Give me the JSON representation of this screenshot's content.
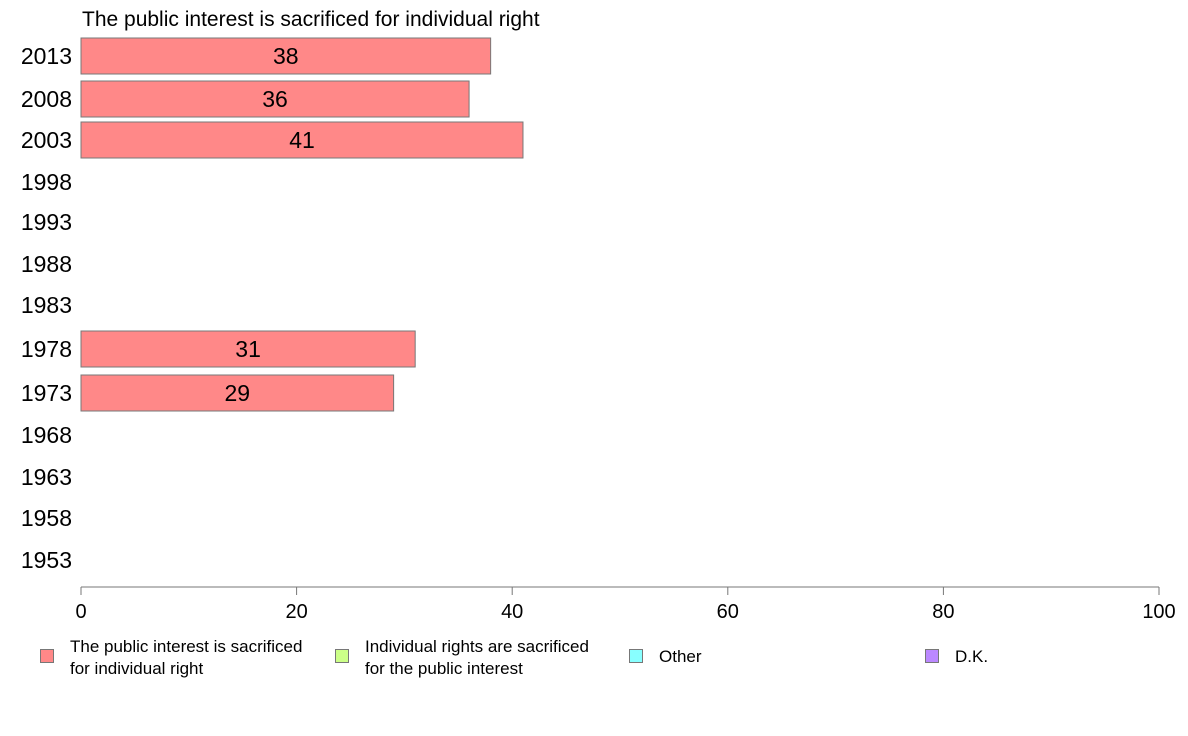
{
  "chart_data": {
    "type": "bar",
    "orientation": "horizontal",
    "title": "The public interest is sacrificed for individual right",
    "categories": [
      "2013",
      "2008",
      "2003",
      "1998",
      "1993",
      "1988",
      "1983",
      "1978",
      "1973",
      "1968",
      "1963",
      "1958",
      "1953"
    ],
    "series": [
      {
        "name": "The public interest is sacrificed\nfor individual right",
        "color": "#ff8888",
        "values": [
          38,
          36,
          41,
          null,
          null,
          null,
          null,
          31,
          29,
          null,
          null,
          null,
          null
        ]
      },
      {
        "name": "Individual rights are sacrificed\nfor the public interest",
        "color": "#ccff88",
        "values": [
          null,
          null,
          null,
          null,
          null,
          null,
          null,
          null,
          null,
          null,
          null,
          null,
          null
        ]
      },
      {
        "name": "Other",
        "color": "#88ffff",
        "values": [
          null,
          null,
          null,
          null,
          null,
          null,
          null,
          null,
          null,
          null,
          null,
          null,
          null
        ]
      },
      {
        "name": "D.K.",
        "color": "#bb88ff",
        "values": [
          null,
          null,
          null,
          null,
          null,
          null,
          null,
          null,
          null,
          null,
          null,
          null,
          null
        ]
      }
    ],
    "xlim": [
      0,
      100
    ],
    "xticks": [
      0,
      20,
      40,
      60,
      80,
      100
    ],
    "xlabel": "",
    "ylabel": "",
    "grid": false,
    "legend_position": "bottom",
    "data_labels": true
  }
}
